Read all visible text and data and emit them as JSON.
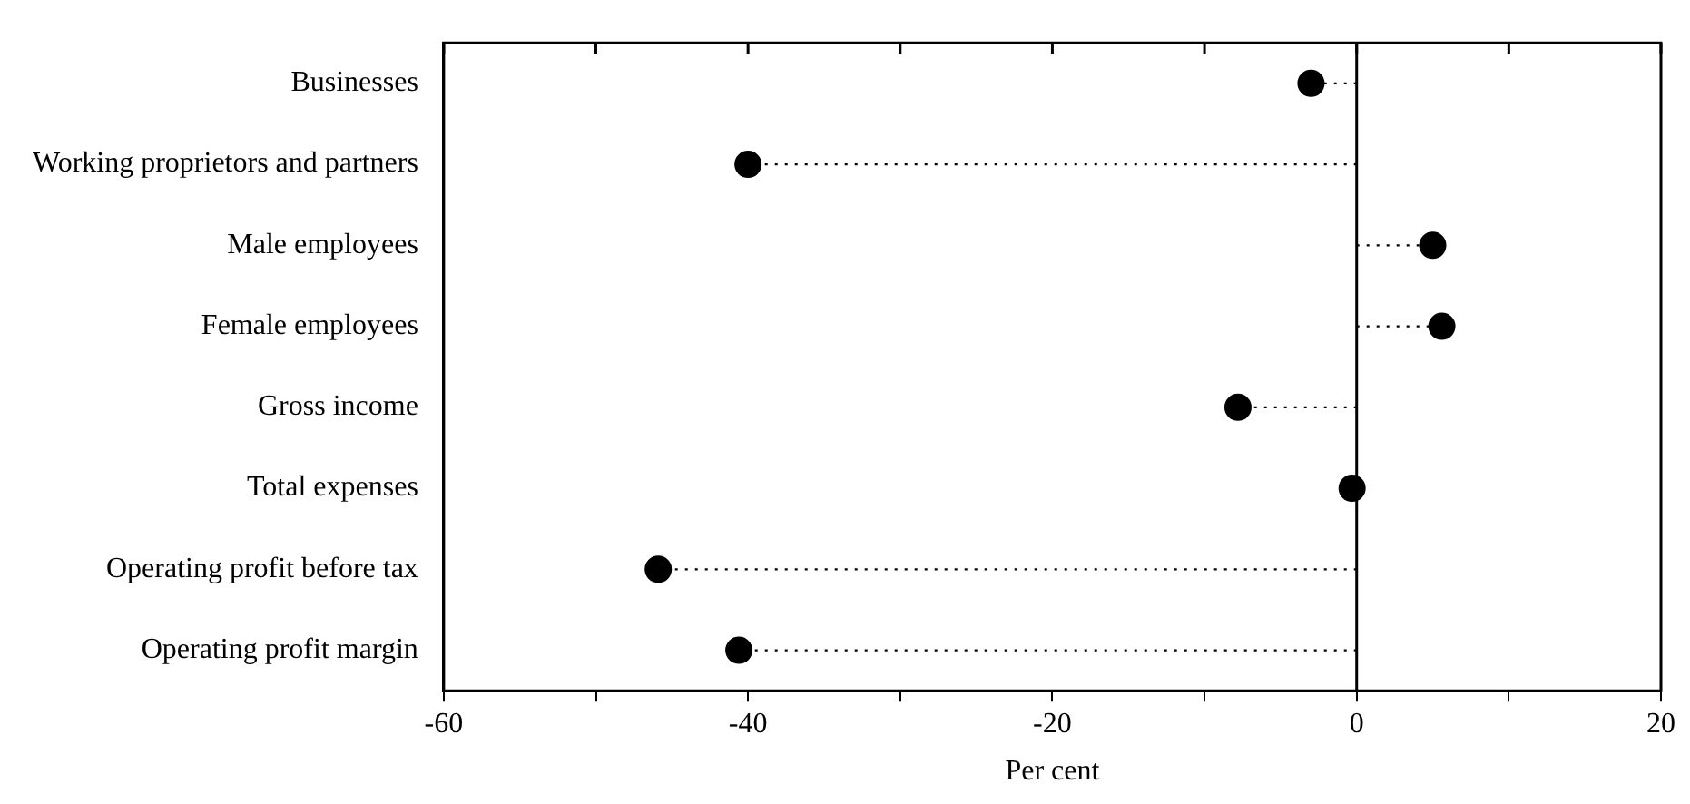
{
  "chart_data": {
    "type": "lollipop",
    "orientation": "horizontal",
    "xlabel": "Per cent",
    "categories": [
      "Businesses",
      "Working proprietors and partners",
      "Male employees",
      "Female employees",
      "Gross income",
      "Total expenses",
      "Operating profit before tax",
      "Operating profit margin"
    ],
    "values": [
      -3,
      -40,
      5,
      5.6,
      -7.8,
      -0.3,
      -45.9,
      -40.6
    ],
    "color": "#000000",
    "marker": "circle",
    "line_style": "dotted",
    "grid": false,
    "legend": false,
    "xlim": [
      -60,
      20
    ],
    "xticks": [
      -60,
      {
        "value": -50,
        "label": null
      },
      -40,
      {
        "value": -30,
        "label": null
      },
      -20,
      {
        "value": -10,
        "label": null
      },
      0,
      {
        "value": 10,
        "label": null
      },
      20
    ],
    "ref_lines": [
      {
        "axis": "x",
        "value": 0,
        "color": "#000000"
      }
    ]
  }
}
